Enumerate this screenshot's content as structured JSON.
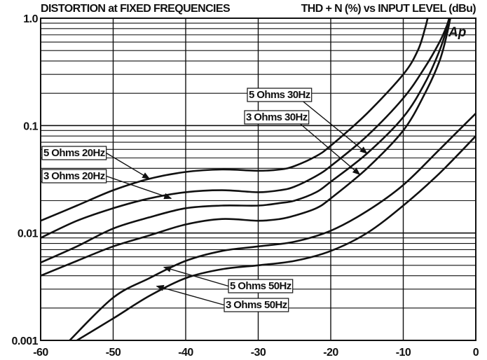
{
  "chart_data": {
    "type": "line",
    "title": "DISTORTION at FIXED FREQUENCIES",
    "subtitle": "THD + N (%) vs INPUT LEVEL (dBu)",
    "logo": "Ap",
    "x_axis": {
      "min": -60,
      "max": 0,
      "ticks": [
        -60,
        -50,
        -40,
        -30,
        -20,
        -10,
        0
      ]
    },
    "y_axis": {
      "scale": "log",
      "min": 0.001,
      "max": 1.0,
      "tick_labels": [
        "1.0",
        "0.1",
        "0.01",
        "0.001"
      ],
      "tick_values": [
        1.0,
        0.1,
        0.01,
        0.001
      ]
    },
    "grid": true,
    "series": [
      {
        "name": "5 Ohms 20Hz",
        "x": [
          -60,
          -55,
          -50,
          -45,
          -40,
          -35,
          -30,
          -27,
          -25,
          -22,
          -20,
          -15,
          -10,
          -8,
          -7,
          -6.5
        ],
        "y": [
          0.013,
          0.018,
          0.025,
          0.032,
          0.037,
          0.039,
          0.038,
          0.039,
          0.042,
          0.052,
          0.065,
          0.13,
          0.3,
          0.5,
          0.8,
          1.1
        ]
      },
      {
        "name": "3 Ohms 20Hz",
        "x": [
          -60,
          -55,
          -50,
          -45,
          -40,
          -35,
          -30,
          -27,
          -25,
          -22,
          -20,
          -15,
          -10,
          -7,
          -5,
          -4,
          -3.5
        ],
        "y": [
          0.009,
          0.013,
          0.017,
          0.021,
          0.024,
          0.025,
          0.024,
          0.025,
          0.027,
          0.034,
          0.042,
          0.08,
          0.18,
          0.35,
          0.6,
          0.85,
          1.1
        ]
      },
      {
        "name": "5 Ohms 30Hz",
        "x": [
          -60,
          -55,
          -50,
          -45,
          -40,
          -35,
          -30,
          -27,
          -25,
          -22,
          -20,
          -15,
          -10,
          -7,
          -5,
          -4,
          -3.5
        ],
        "y": [
          0.0053,
          0.0075,
          0.011,
          0.014,
          0.017,
          0.018,
          0.018,
          0.019,
          0.02,
          0.024,
          0.03,
          0.055,
          0.12,
          0.25,
          0.5,
          0.8,
          1.1
        ]
      },
      {
        "name": "3 Ohms 30Hz",
        "x": [
          -60,
          -55,
          -50,
          -45,
          -40,
          -35,
          -30,
          -27,
          -25,
          -22,
          -20,
          -15,
          -10,
          -7,
          -5,
          -4,
          -3.4
        ],
        "y": [
          0.004,
          0.0055,
          0.0075,
          0.0095,
          0.012,
          0.0135,
          0.013,
          0.0135,
          0.0145,
          0.017,
          0.021,
          0.04,
          0.09,
          0.2,
          0.4,
          0.7,
          1.1
        ]
      },
      {
        "name": "5 Ohms 50Hz",
        "x": [
          -56,
          -50,
          -45,
          -40,
          -35,
          -30,
          -25,
          -20,
          -15,
          -10,
          -5,
          0
        ],
        "y": [
          0.001,
          0.0025,
          0.0038,
          0.0055,
          0.0068,
          0.0075,
          0.0083,
          0.0105,
          0.016,
          0.028,
          0.06,
          0.13
        ]
      },
      {
        "name": "3 Ohms 50Hz",
        "x": [
          -55,
          -50,
          -45,
          -40,
          -35,
          -30,
          -25,
          -20,
          -15,
          -10,
          -5,
          0
        ],
        "y": [
          0.001,
          0.0016,
          0.0026,
          0.0038,
          0.0046,
          0.005,
          0.0055,
          0.0068,
          0.01,
          0.018,
          0.036,
          0.08
        ]
      }
    ],
    "annotations": [
      {
        "label": "5 Ohms 20Hz",
        "series": "5 Ohms 20Hz",
        "arrow_to": [
          -45,
          0.032
        ]
      },
      {
        "label": "3 Ohms 20Hz",
        "series": "3 Ohms 20Hz",
        "arrow_to": [
          -42,
          0.021
        ]
      },
      {
        "label": "5 Ohms 30Hz",
        "series": "5 Ohms 30Hz",
        "arrow_to": [
          -15,
          0.055
        ]
      },
      {
        "label": "3 Ohms 30Hz",
        "series": "3 Ohms 30Hz",
        "arrow_to": [
          -16,
          0.035
        ]
      },
      {
        "label": "5 Ohms 50Hz",
        "series": "5 Ohms 50Hz",
        "arrow_to": [
          -43,
          0.0048
        ]
      },
      {
        "label": "3 Ohms 50Hz",
        "series": "3 Ohms 50Hz",
        "arrow_to": [
          -44,
          0.0032
        ]
      }
    ],
    "colors": {
      "line": "#111111",
      "grid": "#111111",
      "background": "#ffffff"
    }
  }
}
